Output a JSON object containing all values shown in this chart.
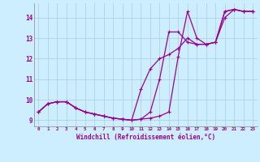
{
  "xlabel": "Windchill (Refroidissement éolien,°C)",
  "bg_color": "#cceeff",
  "line_color": "#990099",
  "grid_color": "#aaccdd",
  "xlim": [
    -0.5,
    23.5
  ],
  "ylim": [
    8.7,
    14.7
  ],
  "yticks": [
    9,
    10,
    11,
    12,
    13,
    14
  ],
  "xticks": [
    0,
    1,
    2,
    3,
    4,
    5,
    6,
    7,
    8,
    9,
    10,
    11,
    12,
    13,
    14,
    15,
    16,
    17,
    18,
    19,
    20,
    21,
    22,
    23
  ],
  "series": [
    [
      9.4,
      9.8,
      9.9,
      9.9,
      9.6,
      9.4,
      9.3,
      9.2,
      9.1,
      9.05,
      9.0,
      9.05,
      9.1,
      9.2,
      9.4,
      12.1,
      14.3,
      13.0,
      12.7,
      12.8,
      14.3,
      14.4,
      14.3,
      14.3
    ],
    [
      9.4,
      9.8,
      9.9,
      9.9,
      9.6,
      9.4,
      9.3,
      9.2,
      9.1,
      9.05,
      9.0,
      9.05,
      9.4,
      11.0,
      13.3,
      13.3,
      12.8,
      12.7,
      12.7,
      12.8,
      14.3,
      14.4,
      14.3,
      14.3
    ],
    [
      9.4,
      9.8,
      9.9,
      9.9,
      9.6,
      9.4,
      9.3,
      9.2,
      9.1,
      9.05,
      9.0,
      10.5,
      11.5,
      12.0,
      12.2,
      12.5,
      13.0,
      12.7,
      12.7,
      12.8,
      14.0,
      14.4,
      14.3,
      14.3
    ]
  ]
}
